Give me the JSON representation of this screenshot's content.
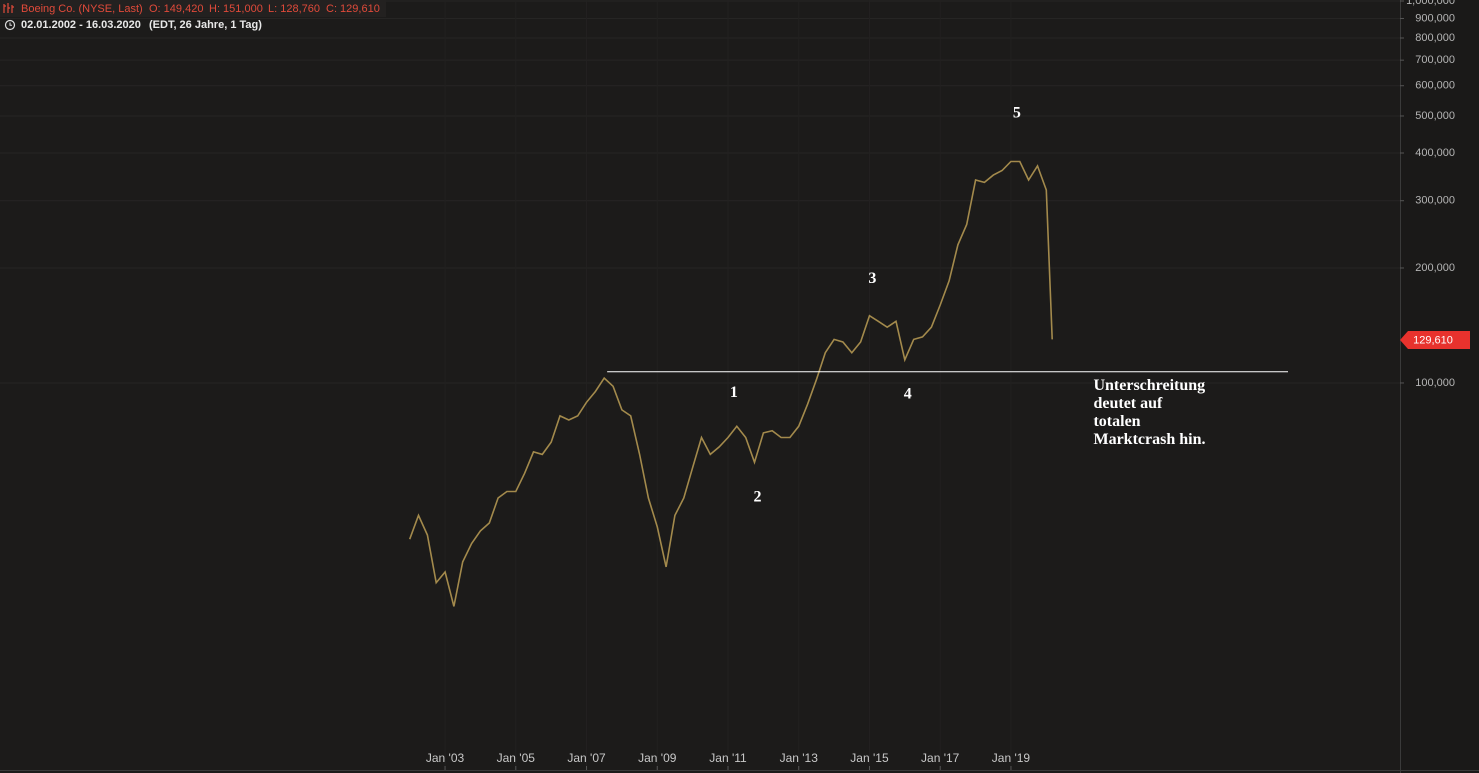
{
  "header": {
    "symbol": "Boeing Co. (NYSE, Last)",
    "quote": [
      "O: 149,420",
      "H: 151,000",
      "L: 128,760",
      "C: 129,610"
    ],
    "range": "02.01.2002 - 16.03.2020",
    "info": "(EDT, 26 Jahre, 1 Tag)"
  },
  "chart_data": {
    "type": "line",
    "log_scale": true,
    "grid": true,
    "x": [
      "2002-01",
      "2002-04",
      "2002-07",
      "2002-10",
      "2003-01",
      "2003-04",
      "2003-07",
      "2003-10",
      "2004-01",
      "2004-04",
      "2004-07",
      "2004-10",
      "2005-01",
      "2005-04",
      "2005-07",
      "2005-10",
      "2006-01",
      "2006-04",
      "2006-07",
      "2006-10",
      "2007-01",
      "2007-04",
      "2007-07",
      "2007-10",
      "2008-01",
      "2008-04",
      "2008-07",
      "2008-10",
      "2009-01",
      "2009-04",
      "2009-07",
      "2009-10",
      "2010-01",
      "2010-04",
      "2010-07",
      "2010-10",
      "2011-01",
      "2011-04",
      "2011-07",
      "2011-10",
      "2012-01",
      "2012-04",
      "2012-07",
      "2012-10",
      "2013-01",
      "2013-04",
      "2013-07",
      "2013-10",
      "2014-01",
      "2014-04",
      "2014-07",
      "2014-10",
      "2015-01",
      "2015-04",
      "2015-07",
      "2015-10",
      "2016-01",
      "2016-04",
      "2016-07",
      "2016-10",
      "2017-01",
      "2017-04",
      "2017-07",
      "2017-10",
      "2018-01",
      "2018-04",
      "2018-07",
      "2018-10",
      "2019-01",
      "2019-04",
      "2019-07",
      "2019-10",
      "2020-01",
      "2020-03"
    ],
    "series": [
      {
        "name": "Boeing Co. (NYSE, Last)",
        "color": "#a38a4c",
        "values": [
          39,
          45,
          40,
          30,
          32,
          26,
          34,
          38,
          41,
          43,
          50,
          52,
          52,
          58,
          66,
          65,
          70,
          82,
          80,
          82,
          89,
          95,
          103,
          98,
          85,
          82,
          65,
          50,
          42,
          33,
          45,
          50,
          60,
          72,
          65,
          68,
          72,
          77,
          72,
          62,
          74,
          75,
          72,
          72,
          77,
          88,
          102,
          120,
          130,
          128,
          120,
          128,
          150,
          145,
          140,
          145,
          115,
          130,
          132,
          140,
          160,
          185,
          230,
          260,
          340,
          335,
          350,
          360,
          380,
          380,
          340,
          370,
          320,
          130
        ]
      }
    ],
    "xlim": [
      "1990-06",
      "2030-01"
    ],
    "xticks": [
      {
        "value": "2003-01",
        "label": "Jan '03"
      },
      {
        "value": "2005-01",
        "label": "Jan '05"
      },
      {
        "value": "2007-01",
        "label": "Jan '07"
      },
      {
        "value": "2009-01",
        "label": "Jan '09"
      },
      {
        "value": "2011-01",
        "label": "Jan '11"
      },
      {
        "value": "2013-01",
        "label": "Jan '13"
      },
      {
        "value": "2015-01",
        "label": "Jan '15"
      },
      {
        "value": "2017-01",
        "label": "Jan '17"
      },
      {
        "value": "2019-01",
        "label": "Jan '19"
      }
    ],
    "ylim": [
      9.7,
      1006
    ],
    "yticks": [
      {
        "value": 100,
        "label": "100,000"
      },
      {
        "value": 200,
        "label": "200,000"
      },
      {
        "value": 300,
        "label": "300,000"
      },
      {
        "value": 400,
        "label": "400,000"
      },
      {
        "value": 500,
        "label": "500,000"
      },
      {
        "value": 600,
        "label": "600,000"
      },
      {
        "value": 700,
        "label": "700,000"
      },
      {
        "value": 800,
        "label": "800,000"
      },
      {
        "value": 900,
        "label": "900,000"
      },
      {
        "value": 1000,
        "label": "1,000,000"
      }
    ],
    "last_value": {
      "value": 129.61,
      "label": "129,610",
      "color": "#e8322d"
    },
    "reference_line": {
      "value": 107,
      "from": "2007-08",
      "to": "2026-11",
      "color": "#ffffff"
    },
    "annotations": [
      {
        "text": "1",
        "x": "2011-03",
        "y": 94
      },
      {
        "text": "2",
        "x": "2011-11",
        "y": 50
      },
      {
        "text": "3",
        "x": "2015-02",
        "y": 187
      },
      {
        "text": "4",
        "x": "2016-02",
        "y": 93
      },
      {
        "text": "5",
        "x": "2019-03",
        "y": 506
      }
    ],
    "note": {
      "lines": [
        "Unterschreitung",
        "deutet auf",
        "totalen",
        "Marktcrash hin."
      ],
      "x": "2021-05",
      "y": 98
    }
  }
}
